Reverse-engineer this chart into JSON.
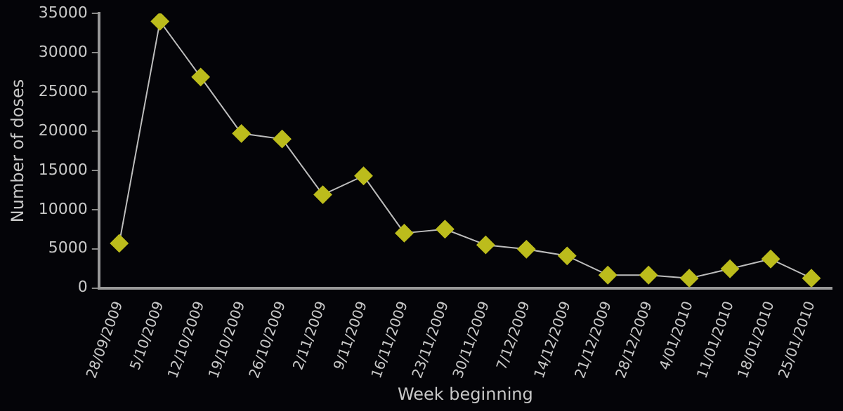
{
  "chart_data": {
    "type": "line",
    "xlabel": "Week beginning",
    "ylabel": "Number of doses",
    "categories": [
      "28/09/2009",
      "5/10/2009",
      "12/10/2009",
      "19/10/2009",
      "26/10/2009",
      "2/11/2009",
      "9/11/2009",
      "16/11/2009",
      "23/11/2009",
      "30/11/2009",
      "7/12/2009",
      "14/12/2009",
      "21/12/2009",
      "28/12/2009",
      "4/01/2010",
      "11/01/2010",
      "18/01/2010",
      "25/01/2010"
    ],
    "series": [
      {
        "color": "#bcbc1c",
        "values": [
          5700,
          34000,
          26900,
          19700,
          19000,
          11900,
          14300,
          7000,
          7500,
          5500,
          4950,
          4100,
          1650,
          1650,
          1250,
          2450,
          3700,
          1250
        ]
      }
    ],
    "ylim": [
      0,
      35000
    ],
    "yticks": [
      0,
      5000,
      10000,
      15000,
      20000,
      25000,
      30000,
      35000
    ],
    "grid": false,
    "legend": false,
    "marker": "diamond",
    "line_style": "solid"
  }
}
